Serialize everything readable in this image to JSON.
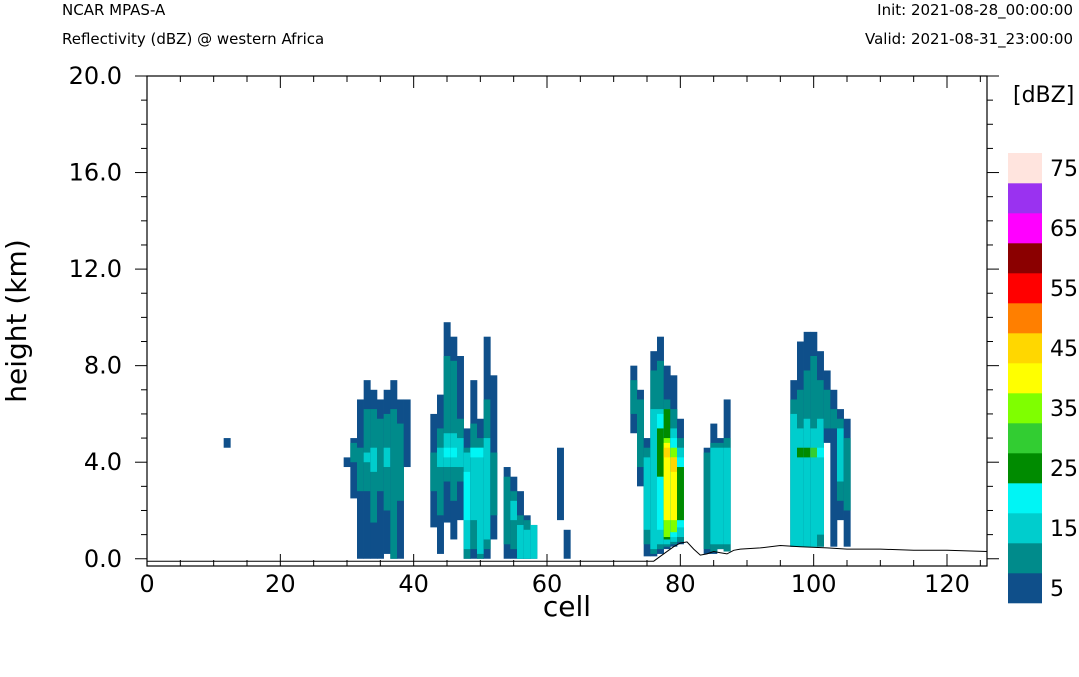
{
  "header": {
    "model": "NCAR MPAS-A",
    "field": "Reflectivity (dBZ) @ western Africa",
    "init": "Init: 2021-08-28_00:00:00",
    "valid": "Valid: 2021-08-31_23:00:00"
  },
  "chart_data": {
    "type": "heatmap",
    "title": "Reflectivity (dBZ) @ western Africa",
    "xlabel": "cell",
    "ylabel": "height (km)",
    "xlim": [
      0,
      126
    ],
    "ylim": [
      -0.3,
      20
    ],
    "x_ticks": [
      "0",
      "20",
      "40",
      "60",
      "80",
      "100",
      "120"
    ],
    "y_ticks": [
      "0.0",
      "4.0",
      "8.0",
      "12.0",
      "16.0",
      "20.0"
    ],
    "colorbar": {
      "unit": "[dBZ]",
      "labels": [
        "5",
        "15",
        "25",
        "35",
        "45",
        "55",
        "65",
        "75"
      ],
      "levels": [
        5,
        10,
        15,
        20,
        25,
        30,
        35,
        40,
        45,
        50,
        55,
        60,
        65,
        70,
        75
      ],
      "colors": [
        "#0f4f8a",
        "#008b8b",
        "#00cdcd",
        "#00f5f5",
        "#008b00",
        "#32cd32",
        "#7fff00",
        "#ffff00",
        "#ffd700",
        "#ff7f00",
        "#ff0000",
        "#8b0000",
        "#ff00ff",
        "#9a32f0",
        "#ffe4de"
      ]
    },
    "terrain": {
      "x": [
        0,
        76,
        77,
        79,
        80,
        81,
        82,
        83,
        84,
        85,
        86,
        87,
        88,
        89,
        92,
        95,
        98,
        102,
        105,
        110,
        115,
        120,
        126
      ],
      "height_km": [
        -0.1,
        -0.1,
        0.1,
        0.5,
        0.65,
        0.7,
        0.4,
        0.15,
        0.2,
        0.3,
        0.25,
        0.2,
        0.35,
        0.4,
        0.45,
        0.55,
        0.5,
        0.45,
        0.4,
        0.4,
        0.35,
        0.35,
        0.3
      ]
    },
    "columns": [
      {
        "x": 12,
        "bins": [
          [
            4.6,
            5.0,
            5
          ]
        ]
      },
      {
        "x": 30,
        "bins": [
          [
            3.8,
            4.2,
            5
          ]
        ]
      },
      {
        "x": 31,
        "bins": [
          [
            2.5,
            5.0,
            5
          ],
          [
            4.0,
            4.8,
            10
          ]
        ]
      },
      {
        "x": 32,
        "bins": [
          [
            0,
            6.6,
            5
          ],
          [
            2.8,
            4.6,
            10
          ]
        ]
      },
      {
        "x": 33,
        "bins": [
          [
            0,
            7.4,
            5
          ],
          [
            2.8,
            6.2,
            10
          ],
          [
            4.0,
            4.4,
            15
          ]
        ]
      },
      {
        "x": 34,
        "bins": [
          [
            0,
            7.0,
            5
          ],
          [
            1.5,
            6.2,
            10
          ],
          [
            3.6,
            4.6,
            15
          ]
        ]
      },
      {
        "x": 35,
        "bins": [
          [
            0,
            6.6,
            5
          ],
          [
            2.8,
            5.8,
            10
          ]
        ]
      },
      {
        "x": 36,
        "bins": [
          [
            0.2,
            7.0,
            5
          ],
          [
            2.0,
            6.0,
            10
          ],
          [
            3.8,
            4.6,
            15
          ]
        ]
      },
      {
        "x": 37,
        "bins": [
          [
            0,
            7.4,
            5
          ],
          [
            0,
            6.2,
            10
          ]
        ]
      },
      {
        "x": 38,
        "bins": [
          [
            0,
            6.6,
            5
          ],
          [
            2.4,
            5.6,
            10
          ]
        ]
      },
      {
        "x": 39,
        "bins": [
          [
            3.8,
            6.6,
            5
          ]
        ]
      },
      {
        "x": 43,
        "bins": [
          [
            1.3,
            6.0,
            5
          ],
          [
            2.8,
            4.4,
            10
          ]
        ]
      },
      {
        "x": 44,
        "bins": [
          [
            0.2,
            6.8,
            5
          ],
          [
            1.8,
            5.4,
            10
          ],
          [
            3.8,
            4.6,
            15
          ]
        ]
      },
      {
        "x": 45,
        "bins": [
          [
            1.5,
            9.8,
            5
          ],
          [
            3.2,
            8.4,
            10
          ],
          [
            3.8,
            5.2,
            15
          ],
          [
            4.2,
            4.6,
            20
          ]
        ]
      },
      {
        "x": 46,
        "bins": [
          [
            0.8,
            9.2,
            5
          ],
          [
            2.4,
            8.2,
            10
          ],
          [
            3.8,
            5.2,
            15
          ],
          [
            4.2,
            4.6,
            20
          ]
        ]
      },
      {
        "x": 47,
        "bins": [
          [
            1.6,
            8.4,
            5
          ],
          [
            3.2,
            5.8,
            10
          ],
          [
            3.8,
            5.0,
            15
          ]
        ]
      },
      {
        "x": 48,
        "bins": [
          [
            0,
            5.4,
            5
          ],
          [
            0,
            4.6,
            10
          ],
          [
            0.4,
            4.4,
            15
          ],
          [
            1.6,
            3.6,
            20
          ]
        ]
      },
      {
        "x": 49,
        "bins": [
          [
            0,
            7.4,
            5
          ],
          [
            0.4,
            5.6,
            10
          ],
          [
            1.6,
            4.6,
            15
          ],
          [
            4.2,
            4.6,
            20
          ]
        ]
      },
      {
        "x": 50,
        "bins": [
          [
            0,
            5.8,
            5
          ],
          [
            0,
            5.0,
            10
          ],
          [
            0.2,
            4.6,
            15
          ],
          [
            4.2,
            4.6,
            20
          ]
        ]
      },
      {
        "x": 51,
        "bins": [
          [
            0,
            9.2,
            5
          ],
          [
            0.4,
            6.6,
            10
          ],
          [
            0.8,
            5.0,
            15
          ]
        ]
      },
      {
        "x": 52,
        "bins": [
          [
            0.8,
            7.6,
            5
          ],
          [
            1.8,
            4.4,
            10
          ]
        ]
      },
      {
        "x": 54,
        "bins": [
          [
            0,
            3.8,
            5
          ],
          [
            0.6,
            3.4,
            10
          ]
        ]
      },
      {
        "x": 55,
        "bins": [
          [
            0,
            3.4,
            5
          ],
          [
            0.4,
            2.8,
            10
          ],
          [
            1.6,
            2.4,
            15
          ]
        ]
      },
      {
        "x": 56,
        "bins": [
          [
            0,
            2.8,
            5
          ],
          [
            0,
            1.8,
            10
          ],
          [
            0,
            1.4,
            15
          ]
        ]
      },
      {
        "x": 57,
        "bins": [
          [
            0,
            1.8,
            5
          ],
          [
            0,
            1.6,
            10
          ],
          [
            0,
            1.2,
            15
          ]
        ]
      },
      {
        "x": 58,
        "bins": [
          [
            0,
            1.4,
            5
          ],
          [
            0,
            1.4,
            15
          ]
        ]
      },
      {
        "x": 62,
        "bins": [
          [
            1.6,
            4.6,
            5
          ]
        ]
      },
      {
        "x": 63,
        "bins": [
          [
            0,
            1.2,
            5
          ]
        ]
      },
      {
        "x": 73,
        "bins": [
          [
            5.2,
            8.0,
            5
          ],
          [
            6.0,
            7.4,
            10
          ]
        ]
      },
      {
        "x": 74,
        "bins": [
          [
            3.0,
            7.0,
            5
          ],
          [
            3.8,
            6.6,
            10
          ]
        ]
      },
      {
        "x": 75,
        "bins": [
          [
            0.1,
            5.0,
            5
          ],
          [
            0.6,
            4.6,
            10
          ],
          [
            1.2,
            4.2,
            15
          ]
        ]
      },
      {
        "x": 76,
        "bins": [
          [
            0.1,
            8.6,
            5
          ],
          [
            0.2,
            7.8,
            10
          ],
          [
            0.4,
            6.2,
            15
          ]
        ]
      },
      {
        "x": 77,
        "bins": [
          [
            0.2,
            9.2,
            5
          ],
          [
            0.4,
            8.2,
            10
          ],
          [
            0.6,
            6.2,
            15
          ],
          [
            1.2,
            6.0,
            20
          ],
          [
            3.4,
            5.4,
            25
          ]
        ]
      },
      {
        "x": 78,
        "bins": [
          [
            0.4,
            8.0,
            5
          ],
          [
            0.5,
            6.6,
            10
          ],
          [
            0.6,
            6.2,
            15
          ],
          [
            0.8,
            6.2,
            25
          ],
          [
            0.9,
            5.0,
            35
          ],
          [
            1.6,
            4.8,
            40
          ],
          [
            4.2,
            4.6,
            45
          ]
        ]
      },
      {
        "x": 79,
        "bins": [
          [
            0.5,
            7.6,
            5
          ],
          [
            0.6,
            6.2,
            10
          ],
          [
            0.7,
            5.4,
            15
          ],
          [
            0.9,
            5.0,
            20
          ],
          [
            1.1,
            4.6,
            35
          ],
          [
            1.6,
            4.2,
            40
          ],
          [
            3.6,
            4.2,
            45
          ]
        ]
      },
      {
        "x": 80,
        "bins": [
          [
            0.6,
            5.8,
            5
          ],
          [
            0.7,
            5.0,
            10
          ],
          [
            0.9,
            4.6,
            15
          ],
          [
            1.3,
            4.2,
            20
          ],
          [
            1.6,
            3.8,
            25
          ]
        ]
      },
      {
        "x": 84,
        "bins": [
          [
            0.2,
            4.6,
            5
          ],
          [
            0.4,
            4.4,
            10
          ]
        ]
      },
      {
        "x": 85,
        "bins": [
          [
            0.2,
            5.6,
            5
          ],
          [
            0.3,
            4.8,
            10
          ],
          [
            0.6,
            4.6,
            15
          ]
        ]
      },
      {
        "x": 86,
        "bins": [
          [
            0.4,
            5.0,
            5
          ],
          [
            0.4,
            4.8,
            10
          ],
          [
            0.6,
            4.6,
            15
          ]
        ]
      },
      {
        "x": 87,
        "bins": [
          [
            0.3,
            6.6,
            5
          ],
          [
            0.3,
            5.0,
            10
          ],
          [
            0.6,
            4.6,
            15
          ]
        ]
      },
      {
        "x": 97,
        "bins": [
          [
            0.5,
            7.4,
            5
          ],
          [
            0.5,
            6.6,
            10
          ],
          [
            0.5,
            6.0,
            15
          ]
        ]
      },
      {
        "x": 98,
        "bins": [
          [
            0.5,
            9.0,
            5
          ],
          [
            0.5,
            7.0,
            10
          ],
          [
            0.5,
            5.4,
            15
          ],
          [
            4.2,
            4.6,
            25
          ]
        ]
      },
      {
        "x": 99,
        "bins": [
          [
            0.5,
            9.4,
            5
          ],
          [
            0.5,
            7.8,
            10
          ],
          [
            0.5,
            5.8,
            15
          ],
          [
            4.2,
            4.6,
            25
          ]
        ]
      },
      {
        "x": 100,
        "bins": [
          [
            0.5,
            9.4,
            5
          ],
          [
            0.5,
            8.4,
            10
          ],
          [
            0.5,
            5.4,
            15
          ],
          [
            4.2,
            4.6,
            30
          ]
        ]
      },
      {
        "x": 101,
        "bins": [
          [
            0.5,
            8.6,
            5
          ],
          [
            0.5,
            7.4,
            10
          ],
          [
            1.0,
            5.8,
            15
          ],
          [
            4.2,
            4.6,
            20
          ]
        ]
      },
      {
        "x": 102,
        "bins": [
          [
            4.8,
            7.8,
            5
          ],
          [
            5.4,
            7.0,
            10
          ]
        ]
      },
      {
        "x": 103,
        "bins": [
          [
            0.5,
            7.0,
            5
          ],
          [
            5.4,
            6.2,
            10
          ]
        ]
      },
      {
        "x": 104,
        "bins": [
          [
            1.6,
            6.2,
            5
          ],
          [
            2.4,
            5.8,
            10
          ],
          [
            3.2,
            5.4,
            15
          ]
        ]
      },
      {
        "x": 105,
        "bins": [
          [
            0.5,
            5.8,
            5
          ],
          [
            2.0,
            5.0,
            10
          ]
        ]
      }
    ]
  }
}
